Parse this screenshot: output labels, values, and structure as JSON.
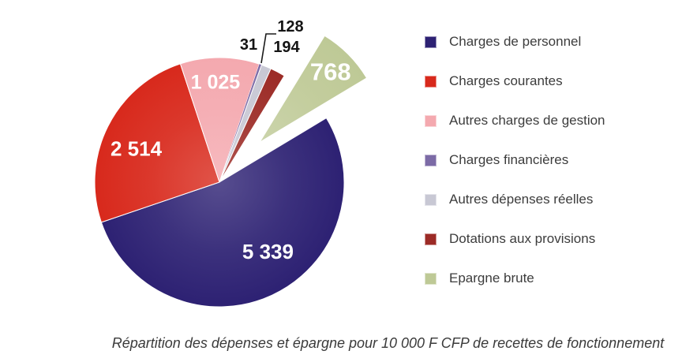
{
  "chart_data": {
    "type": "pie",
    "caption": "Répartition des dépenses et épargne pour 10 000 F CFP de recettes de fonctionnement",
    "total": 9999,
    "reference_total_label": "10 000 F CFP",
    "start_angle_deg": 59,
    "legend_position": "right",
    "grid": false,
    "slices": [
      {
        "label": "Charges de personnel",
        "value": 5339,
        "display_value": "5 339",
        "color": "#2D2173",
        "label_placement": "inside",
        "label_r": 0.68,
        "label_angle_offset_deg": -10,
        "label_size": 26,
        "explode": 0
      },
      {
        "label": "Charges courantes",
        "value": 2514,
        "display_value": "2 514",
        "color": "#D8291C",
        "label_placement": "inside",
        "label_r": 0.72,
        "label_angle_offset_deg": -4.5,
        "label_size": 26,
        "explode": 0
      },
      {
        "label": "Autres charges de gestion",
        "value": 1025,
        "display_value": "1 025",
        "color": "#F4A9AF",
        "label_placement": "inside",
        "label_r": 0.8,
        "label_angle_offset_deg": -2.5,
        "label_size": 25,
        "explode": 0
      },
      {
        "label": "Charges financières",
        "value": 31,
        "display_value": "31",
        "color": "#7C6BA6",
        "label_placement": "outside",
        "explode": 0
      },
      {
        "label": "Autres dépenses réelles",
        "value": 128,
        "display_value": "128",
        "color": "#C8C8D4",
        "label_placement": "outside",
        "explode": 0
      },
      {
        "label": "Dotations aux provisions",
        "value": 194,
        "display_value": "194",
        "color": "#9C2B26",
        "label_placement": "outside",
        "explode": 0
      },
      {
        "label": "Epargne brute",
        "value": 768,
        "display_value": "768",
        "color": "#BEC996",
        "label_placement": "inside",
        "label_r": 0.8,
        "label_angle_offset_deg": 0,
        "label_size": 31,
        "explode": 72
      }
    ]
  }
}
